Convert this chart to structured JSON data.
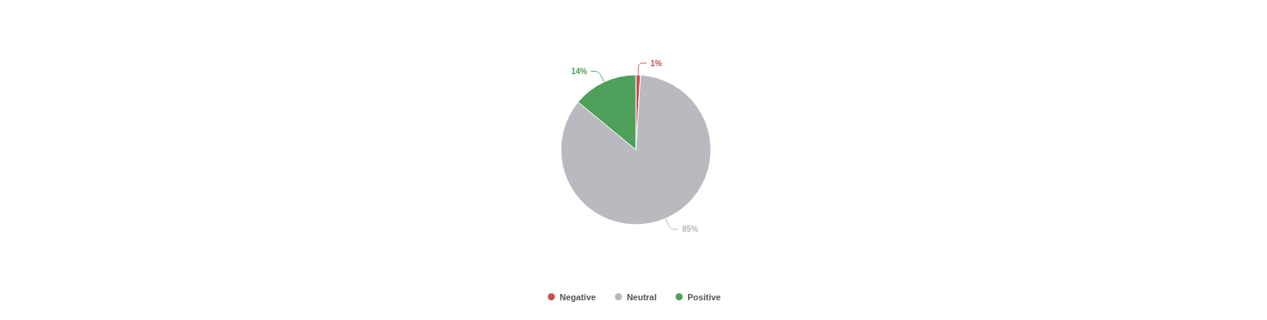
{
  "chart_data": {
    "type": "pie",
    "categories": [
      "Negative",
      "Neutral",
      "Positive"
    ],
    "values": [
      1,
      85,
      14
    ],
    "colors": [
      "#c9504f",
      "#b9b9bf",
      "#4ea05a"
    ],
    "value_labels": [
      "1%",
      "85%",
      "14%"
    ],
    "legend": "bottom"
  }
}
